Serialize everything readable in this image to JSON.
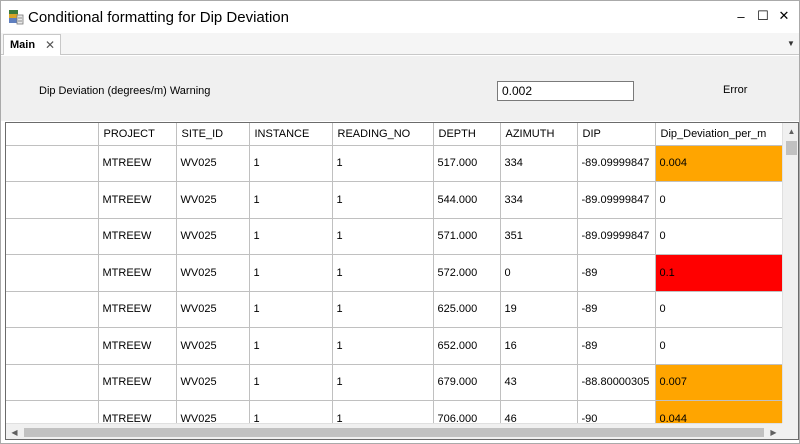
{
  "window": {
    "title": "Conditional formatting for Dip Deviation",
    "minimize": "–",
    "maximize": "☐",
    "close": "✕"
  },
  "tabs": [
    {
      "label": "Main",
      "close": "✕"
    }
  ],
  "settings": {
    "warning_label": "Dip Deviation (degrees/m) Warning",
    "warning_value": "0.002",
    "error_label": "Error"
  },
  "colors": {
    "warning": "#ffa500",
    "error": "#ff0000"
  },
  "grid": {
    "columns": [
      "PROJECT",
      "SITE_ID",
      "INSTANCE",
      "READING_NO",
      "DEPTH",
      "AZIMUTH",
      "DIP",
      "Dip_Deviation_per_m"
    ],
    "rows": [
      {
        "cells": [
          "MTREEW",
          "WV025",
          "1",
          "1",
          "517.000",
          "334",
          "-89.09999847",
          "0.004"
        ],
        "status": "warning"
      },
      {
        "cells": [
          "MTREEW",
          "WV025",
          "1",
          "1",
          "544.000",
          "334",
          "-89.09999847",
          "0"
        ],
        "status": "normal"
      },
      {
        "cells": [
          "MTREEW",
          "WV025",
          "1",
          "1",
          "571.000",
          "351",
          "-89.09999847",
          "0"
        ],
        "status": "normal"
      },
      {
        "cells": [
          "MTREEW",
          "WV025",
          "1",
          "1",
          "572.000",
          "0",
          "-89",
          "0.1"
        ],
        "status": "error"
      },
      {
        "cells": [
          "MTREEW",
          "WV025",
          "1",
          "1",
          "625.000",
          "19",
          "-89",
          "0"
        ],
        "status": "normal"
      },
      {
        "cells": [
          "MTREEW",
          "WV025",
          "1",
          "1",
          "652.000",
          "16",
          "-89",
          "0"
        ],
        "status": "normal"
      },
      {
        "cells": [
          "MTREEW",
          "WV025",
          "1",
          "1",
          "679.000",
          "43",
          "-88.80000305",
          "0.007"
        ],
        "status": "warning"
      },
      {
        "cells": [
          "MTREEW",
          "WV025",
          "1",
          "1",
          "706.000",
          "46",
          "-90",
          "0.044"
        ],
        "status": "warning"
      }
    ]
  }
}
